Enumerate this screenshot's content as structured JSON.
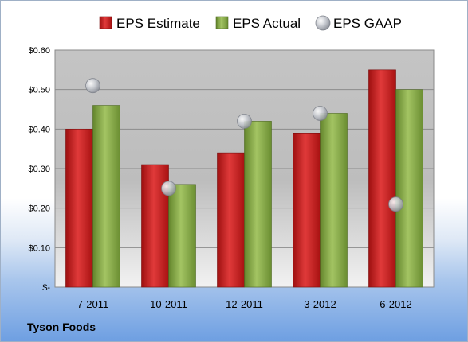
{
  "chart_data": {
    "type": "bar",
    "categories": [
      "7-2011",
      "10-2011",
      "12-2011",
      "3-2012",
      "6-2012"
    ],
    "series": [
      {
        "name": "EPS Estimate",
        "kind": "bar",
        "color": "#d62020",
        "values": [
          0.4,
          0.31,
          0.34,
          0.39,
          0.55
        ]
      },
      {
        "name": "EPS Actual",
        "kind": "bar",
        "color": "#8cb04a",
        "values": [
          0.46,
          0.26,
          0.42,
          0.44,
          0.5
        ]
      },
      {
        "name": "EPS GAAP",
        "kind": "marker",
        "color": "#b8bcc4",
        "values": [
          0.51,
          0.25,
          0.42,
          0.44,
          0.21
        ]
      }
    ],
    "ylim": [
      0,
      0.6
    ],
    "yticks": [
      0,
      0.1,
      0.2,
      0.3,
      0.4,
      0.5,
      0.6
    ],
    "ytick_labels": [
      "$-",
      "$0.10",
      "$0.20",
      "$0.30",
      "$0.40",
      "$0.50",
      "$0.60"
    ],
    "grid": true,
    "legend": "top"
  },
  "footer": {
    "company": "Tyson Foods"
  }
}
